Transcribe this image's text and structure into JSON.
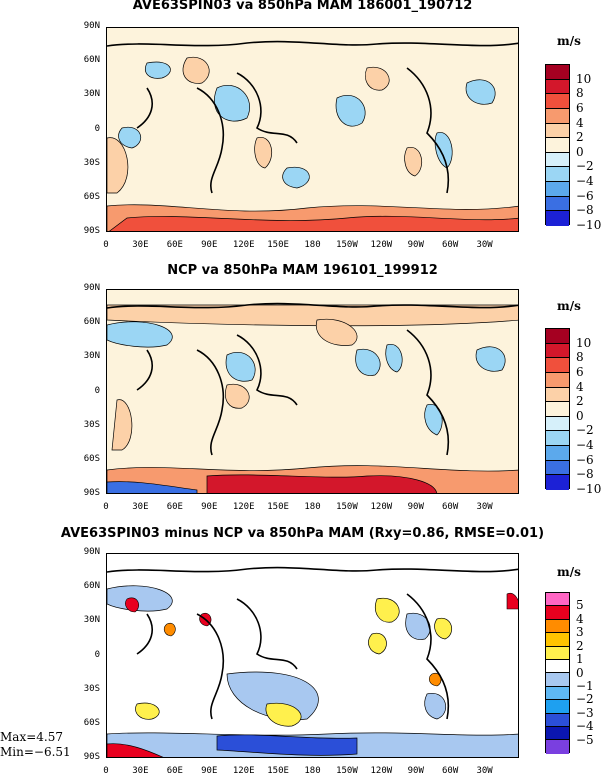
{
  "xticks": [
    "0",
    "30E",
    "60E",
    "90E",
    "120E",
    "150E",
    "180",
    "150W",
    "120W",
    "90W",
    "60W",
    "30W"
  ],
  "yticks": [
    "90N",
    "60N",
    "30N",
    "0",
    "30S",
    "60S",
    "90S"
  ],
  "panels": [
    {
      "title": "AVE63SPIN03 va 850hPa MAM 186001_190712",
      "units": "m/s",
      "levels": [
        "10",
        "8",
        "6",
        "4",
        "2",
        "0",
        "−2",
        "−4",
        "−6",
        "−8",
        "−10"
      ],
      "colors": [
        "#a50021",
        "#d3172b",
        "#f0503c",
        "#f79a6e",
        "#fcd1a8",
        "#fdf3dc",
        "#d6f0fa",
        "#9bd6f4",
        "#5ca9ec",
        "#3a6fe3",
        "#1c21d6"
      ]
    },
    {
      "title": "NCP va 850hPa MAM 196101_199912",
      "units": "m/s",
      "levels": [
        "10",
        "8",
        "6",
        "4",
        "2",
        "0",
        "−2",
        "−4",
        "−6",
        "−8",
        "−10"
      ],
      "colors": [
        "#a50021",
        "#d3172b",
        "#f0503c",
        "#f79a6e",
        "#fcd1a8",
        "#fdf3dc",
        "#d6f0fa",
        "#9bd6f4",
        "#5ca9ec",
        "#3a6fe3",
        "#1c21d6"
      ]
    },
    {
      "title": "AVE63SPIN03 minus NCP va 850hPa MAM (Rxy=0.86, RMSE=0.01)",
      "units": "m/s",
      "levels": [
        "5",
        "4",
        "3",
        "2",
        "1",
        "0",
        "−1",
        "−2",
        "−3",
        "−4",
        "−5"
      ],
      "colors": [
        "#ff66c4",
        "#e8001f",
        "#ff8c00",
        "#ffc400",
        "#fff04d",
        "#ffffff",
        "#a8c8f0",
        "#5fb8f4",
        "#1ea0f0",
        "#2b4fd8",
        "#0b16b0",
        "#7a3fe0"
      ]
    }
  ],
  "stats": {
    "max": "Max=4.57",
    "min": "Min=−6.51"
  }
}
